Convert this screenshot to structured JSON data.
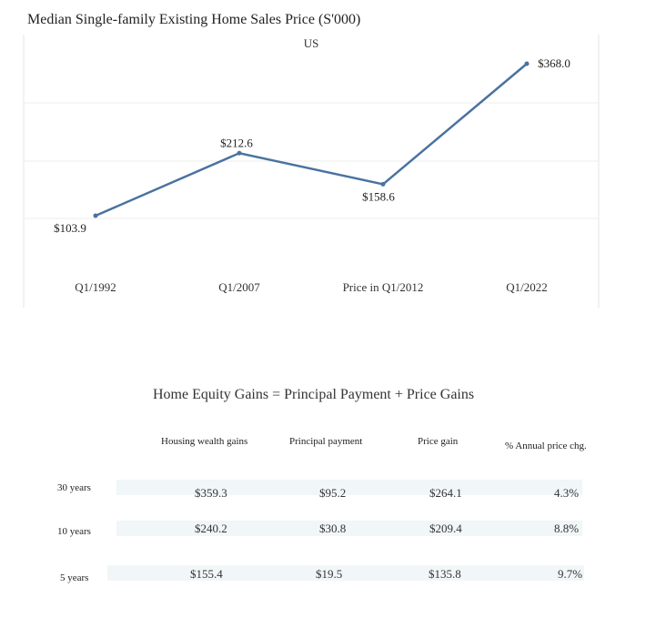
{
  "chart_data": {
    "type": "line",
    "title": "Median Single-family Existing Home Sales Price (S'000)",
    "series": [
      {
        "name": "US",
        "x": [
          "Q1/1992",
          "Q1/2007",
          "Price in Q1/2012",
          "Q1/2022"
        ],
        "values": [
          103.9,
          212.6,
          158.6,
          368.0
        ],
        "labels": [
          "$103.9",
          "$212.6",
          "$158.6",
          "$368.0"
        ]
      }
    ],
    "line_color": "#4a72a0",
    "legend_placement": "top-center",
    "grid": true
  },
  "table": {
    "title": "Home Equity Gains = Principal Payment + Price Gains",
    "headers": [
      "Housing wealth gains",
      "Principal payment",
      "Price gain",
      "% Annual price chg."
    ],
    "rows": [
      {
        "label": "30 years",
        "cells": [
          "$359.3",
          "$95.2",
          "$264.1",
          "4.3%"
        ]
      },
      {
        "label": "10 years",
        "cells": [
          "$240.2",
          "$30.8",
          "$209.4",
          "8.8%"
        ]
      },
      {
        "label": "5 years",
        "cells": [
          "$155.4",
          "$19.5",
          "$135.8",
          "9.7%"
        ]
      }
    ],
    "band_color": "#f1f6f8"
  }
}
